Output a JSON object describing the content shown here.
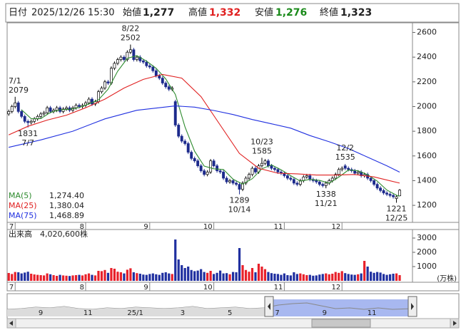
{
  "header": {
    "date_label": "日付",
    "date": "2025/12/26 15:30",
    "open_label": "始値",
    "open": "1,277",
    "high_label": "高値",
    "high": "1,332",
    "low_label": "安値",
    "low": "1,276",
    "close_label": "終値",
    "close": "1,323"
  },
  "chart_data": {
    "type": "candlestick",
    "xlim": [
      -0.5,
      126
    ],
    "xticks": [
      {
        "value": 2,
        "label": "7"
      },
      {
        "value": 24,
        "label": "8"
      },
      {
        "value": 44,
        "label": "9"
      },
      {
        "value": 64,
        "label": "10"
      },
      {
        "value": 86,
        "label": "11"
      },
      {
        "value": 104,
        "label": "12"
      }
    ],
    "ylim": [
      1062,
      2678
    ],
    "yticks": [
      1200,
      1400,
      1600,
      1800,
      2000,
      2200,
      2400,
      2600
    ],
    "up_color": "#ffffff",
    "down_color": "#1c2a8c",
    "open": [
      1940,
      1960,
      2000,
      2030,
      1960,
      1920,
      1880,
      1870,
      1880,
      1900,
      1920,
      1940,
      1950,
      1990,
      1960,
      1970,
      1990,
      1960,
      1980,
      1990,
      1970,
      1990,
      2010,
      2000,
      2010,
      2030,
      2060,
      2020,
      2040,
      2120,
      2150,
      2200,
      2190,
      2310,
      2350,
      2380,
      2400,
      2380,
      2440,
      2460,
      2380,
      2400,
      2370,
      2360,
      2330,
      2320,
      2290,
      2250,
      2230,
      2190,
      2160,
      2140,
      2040,
      1850,
      1760,
      1720,
      1700,
      1630,
      1580,
      1560,
      1520,
      1480,
      1450,
      1470,
      1560,
      1520,
      1480,
      1470,
      1420,
      1390,
      1400,
      1380,
      1370,
      1330,
      1380,
      1420,
      1450,
      1500,
      1470,
      1520,
      1540,
      1560,
      1520,
      1500,
      1490,
      1470,
      1460,
      1440,
      1420,
      1410,
      1380,
      1370,
      1400,
      1430,
      1440,
      1410,
      1400,
      1390,
      1370,
      1360,
      1380,
      1400,
      1420,
      1450,
      1490,
      1520,
      1500,
      1490,
      1480,
      1460,
      1470,
      1440,
      1450,
      1420,
      1400,
      1370,
      1340,
      1320,
      1300,
      1290,
      1280,
      1255,
      1277
    ],
    "high": [
      1975,
      2015,
      2079,
      2045,
      1975,
      1935,
      1895,
      1895,
      1915,
      1935,
      1955,
      1965,
      2005,
      2005,
      1985,
      2005,
      2005,
      1995,
      2005,
      2005,
      2005,
      2025,
      2025,
      2025,
      2045,
      2075,
      2075,
      2055,
      2135,
      2165,
      2215,
      2215,
      2325,
      2365,
      2395,
      2415,
      2415,
      2455,
      2502,
      2475,
      2415,
      2415,
      2385,
      2375,
      2345,
      2335,
      2305,
      2265,
      2245,
      2205,
      2175,
      2165,
      2055,
      1865,
      1775,
      1735,
      1715,
      1645,
      1595,
      1575,
      1535,
      1495,
      1485,
      1575,
      1575,
      1535,
      1495,
      1485,
      1435,
      1415,
      1415,
      1395,
      1385,
      1395,
      1435,
      1465,
      1515,
      1515,
      1535,
      1585,
      1575,
      1575,
      1535,
      1515,
      1505,
      1485,
      1475,
      1455,
      1435,
      1425,
      1395,
      1415,
      1445,
      1455,
      1455,
      1425,
      1415,
      1405,
      1385,
      1395,
      1415,
      1435,
      1465,
      1505,
      1515,
      1535,
      1515,
      1505,
      1495,
      1485,
      1485,
      1465,
      1465,
      1435,
      1415,
      1385,
      1355,
      1335,
      1315,
      1305,
      1295,
      1285,
      1332
    ],
    "low": [
      1925,
      1945,
      1985,
      1945,
      1905,
      1865,
      1831,
      1855,
      1865,
      1885,
      1905,
      1925,
      1935,
      1945,
      1945,
      1955,
      1945,
      1945,
      1965,
      1955,
      1955,
      1975,
      1985,
      1985,
      1995,
      2015,
      2005,
      2005,
      2025,
      2105,
      2135,
      2175,
      2175,
      2295,
      2335,
      2365,
      2365,
      2365,
      2425,
      2365,
      2365,
      2355,
      2345,
      2315,
      2305,
      2275,
      2235,
      2215,
      2175,
      2145,
      2125,
      2125,
      1835,
      1745,
      1705,
      1685,
      1615,
      1565,
      1545,
      1505,
      1465,
      1435,
      1435,
      1455,
      1505,
      1465,
      1455,
      1405,
      1375,
      1375,
      1365,
      1355,
      1289,
      1315,
      1365,
      1405,
      1435,
      1455,
      1455,
      1505,
      1525,
      1505,
      1485,
      1475,
      1455,
      1445,
      1425,
      1405,
      1395,
      1365,
      1355,
      1355,
      1385,
      1415,
      1395,
      1385,
      1375,
      1355,
      1345,
      1338,
      1365,
      1385,
      1405,
      1435,
      1475,
      1485,
      1475,
      1465,
      1445,
      1445,
      1425,
      1425,
      1405,
      1385,
      1355,
      1325,
      1305,
      1285,
      1275,
      1265,
      1255,
      1221,
      1276
    ],
    "close": [
      1960,
      2000,
      2030,
      1960,
      1920,
      1880,
      1870,
      1880,
      1900,
      1920,
      1940,
      1950,
      1990,
      1960,
      1970,
      1990,
      1960,
      1980,
      1990,
      1970,
      1990,
      2010,
      2000,
      2010,
      2030,
      2060,
      2020,
      2040,
      2120,
      2150,
      2200,
      2190,
      2310,
      2350,
      2380,
      2400,
      2380,
      2440,
      2460,
      2380,
      2400,
      2370,
      2360,
      2330,
      2320,
      2290,
      2250,
      2230,
      2190,
      2160,
      2140,
      2150,
      1850,
      1760,
      1720,
      1700,
      1630,
      1580,
      1560,
      1520,
      1480,
      1450,
      1470,
      1560,
      1520,
      1480,
      1470,
      1420,
      1390,
      1400,
      1380,
      1370,
      1330,
      1380,
      1420,
      1450,
      1500,
      1470,
      1520,
      1540,
      1560,
      1520,
      1500,
      1490,
      1470,
      1460,
      1440,
      1420,
      1410,
      1380,
      1370,
      1400,
      1430,
      1440,
      1410,
      1400,
      1390,
      1370,
      1360,
      1380,
      1400,
      1420,
      1450,
      1490,
      1500,
      1500,
      1490,
      1480,
      1460,
      1470,
      1440,
      1450,
      1420,
      1400,
      1370,
      1340,
      1320,
      1300,
      1290,
      1280,
      1270,
      1270,
      1323
    ],
    "moving_averages": [
      {
        "name": "MA(5)",
        "color": "#2e8b2e",
        "latest": "1,274.40",
        "x": [
          4,
          7,
          10,
          13,
          16,
          19,
          22,
          25,
          28,
          31,
          34,
          37,
          40,
          43,
          46,
          49,
          52,
          55,
          58,
          61,
          64,
          67,
          70,
          73,
          76,
          79,
          82,
          85,
          88,
          91,
          94,
          97,
          100,
          103,
          106,
          109,
          112,
          115,
          118,
          121,
          122
        ],
        "values": [
          1974,
          1902,
          1902,
          1952,
          1974,
          1978,
          1992,
          2022,
          2054,
          2140,
          2286,
          2390,
          2412,
          2368,
          2310,
          2224,
          2098,
          1836,
          1638,
          1518,
          1496,
          1490,
          1412,
          1372,
          1416,
          1496,
          1528,
          1488,
          1440,
          1396,
          1410,
          1402,
          1380,
          1428,
          1486,
          1480,
          1448,
          1396,
          1324,
          1282,
          1274.4
        ]
      },
      {
        "name": "MA(25)",
        "color": "#e02020",
        "latest": "1,380.04",
        "x": [
          0,
          6,
          12,
          18,
          24,
          30,
          36,
          42,
          48,
          54,
          60,
          66,
          72,
          78,
          84,
          90,
          96,
          102,
          108,
          114,
          122
        ],
        "values": [
          1770,
          1840,
          1890,
          1930,
          1990,
          2060,
          2150,
          2220,
          2260,
          2230,
          2080,
          1850,
          1620,
          1500,
          1460,
          1455,
          1445,
          1445,
          1450,
          1430,
          1380.04
        ]
      },
      {
        "name": "MA(75)",
        "color": "#2030e0",
        "latest": "1,468.89",
        "x": [
          0,
          10,
          20,
          30,
          40,
          52,
          58,
          64,
          70,
          76,
          82,
          88,
          94,
          100,
          106,
          112,
          118,
          122
        ],
        "values": [
          1670,
          1730,
          1800,
          1900,
          1970,
          2005,
          1995,
          1968,
          1935,
          1895,
          1860,
          1825,
          1765,
          1715,
          1660,
          1590,
          1520,
          1468.89
        ]
      }
    ],
    "annotations": [
      {
        "date": "7/1",
        "x": 2,
        "value": 2079
      },
      {
        "date": "7/7",
        "x": 6,
        "value": 1831
      },
      {
        "date": "8/22",
        "x": 38,
        "value": 2502
      },
      {
        "date": "10/14",
        "x": 72,
        "value": 1289
      },
      {
        "date": "10/23",
        "x": 79,
        "value": 1585
      },
      {
        "date": "11/21",
        "x": 99,
        "value": 1338
      },
      {
        "date": "12/2",
        "x": 105,
        "value": 1535
      },
      {
        "date": "12/25",
        "x": 121,
        "value": 1221
      }
    ],
    "volume": {
      "type": "bar",
      "label": "出来高",
      "total": "4,020,600株",
      "unit": "(万株)",
      "up_color": "#e8202a",
      "down_color": "#2030a0",
      "ylim": [
        0,
        3600
      ],
      "yticks": [
        1000,
        2000,
        3000
      ],
      "values": [
        550,
        480,
        620,
        600,
        520,
        580,
        640,
        500,
        450,
        420,
        400,
        380,
        520,
        460,
        400,
        350,
        420,
        380,
        360,
        340,
        380,
        400,
        420,
        380,
        460,
        520,
        420,
        380,
        700,
        680,
        760,
        560,
        900,
        850,
        640,
        600,
        520,
        780,
        880,
        600,
        540,
        500,
        440,
        420,
        480,
        520,
        460,
        420,
        560,
        600,
        520,
        480,
        2900,
        1500,
        1100,
        900,
        1000,
        760,
        680,
        720,
        820,
        620,
        560,
        700,
        480,
        560,
        720,
        520,
        540,
        460,
        620,
        600,
        2300,
        1100,
        760,
        640,
        900,
        600,
        1200,
        1000,
        820,
        620,
        540,
        500,
        480,
        420,
        520,
        400,
        380,
        600,
        480,
        520,
        460,
        400,
        420,
        360,
        380,
        440,
        480,
        520,
        460,
        500,
        620,
        560,
        680,
        540,
        480,
        440,
        420,
        460,
        520,
        1400,
        1000,
        640,
        560,
        620,
        580,
        480,
        420,
        460,
        500,
        520,
        402.06
      ]
    }
  },
  "navigator": {
    "labels": [
      "9",
      "11",
      "25/1",
      "3",
      "5",
      "7",
      "9",
      "11"
    ]
  }
}
